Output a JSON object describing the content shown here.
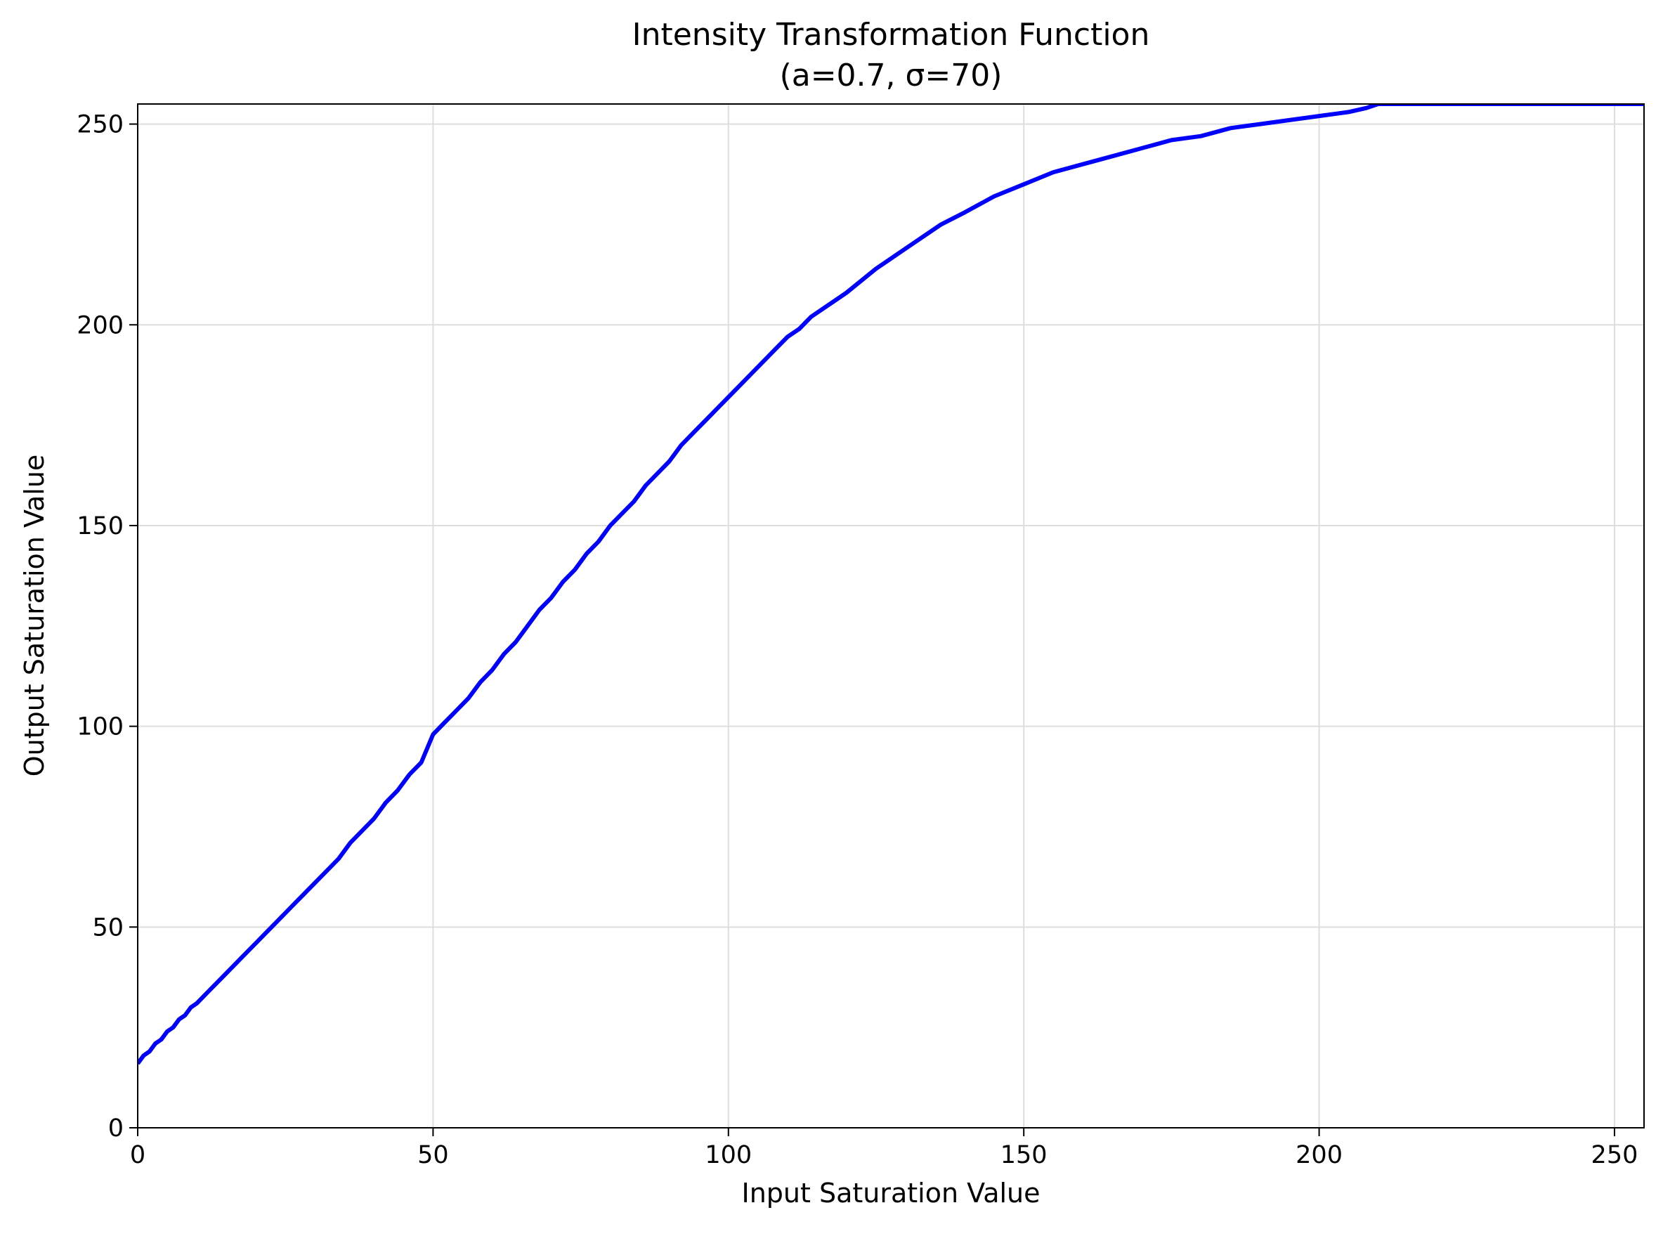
{
  "chart_data": {
    "type": "line",
    "title": "Intensity Transformation Function",
    "subtitle": "(a=0.7, σ=70)",
    "xlabel": "Input Saturation Value",
    "ylabel": "Output Saturation Value",
    "xlim": [
      0,
      255
    ],
    "ylim": [
      0,
      255
    ],
    "xticks": [
      0,
      50,
      100,
      150,
      200,
      250
    ],
    "yticks": [
      0,
      50,
      100,
      150,
      200,
      250
    ],
    "grid": true,
    "legend": "none",
    "series": [
      {
        "color": "#0000ff",
        "x": [
          0,
          1,
          2,
          3,
          4,
          5,
          6,
          7,
          8,
          9,
          10,
          12,
          14,
          16,
          18,
          20,
          22,
          24,
          26,
          28,
          30,
          32,
          34,
          36,
          38,
          40,
          42,
          44,
          46,
          48,
          50,
          52,
          54,
          56,
          58,
          60,
          62,
          64,
          66,
          68,
          70,
          72,
          74,
          76,
          78,
          80,
          82,
          84,
          86,
          88,
          90,
          92,
          94,
          96,
          98,
          100,
          102,
          104,
          106,
          108,
          110,
          112,
          114,
          116,
          118,
          120,
          125,
          130,
          136,
          140,
          145,
          150,
          155,
          160,
          165,
          170,
          175,
          180,
          185,
          190,
          195,
          200,
          205,
          208,
          210,
          215,
          220,
          230,
          240,
          255
        ],
        "y": [
          16,
          18,
          19,
          21,
          22,
          24,
          25,
          27,
          28,
          30,
          31,
          34,
          37,
          40,
          43,
          46,
          49,
          52,
          55,
          58,
          61,
          64,
          67,
          71,
          74,
          77,
          81,
          84,
          88,
          91,
          98,
          101,
          104,
          107,
          111,
          114,
          118,
          121,
          125,
          129,
          132,
          136,
          139,
          143,
          146,
          150,
          153,
          156,
          160,
          163,
          166,
          170,
          173,
          176,
          179,
          182,
          185,
          188,
          191,
          194,
          197,
          199,
          202,
          204,
          206,
          208,
          214,
          219,
          225,
          228,
          232,
          235,
          238,
          240,
          242,
          244,
          246,
          247,
          249,
          250,
          251,
          252,
          253,
          254,
          255,
          255,
          255,
          255,
          255,
          255
        ]
      }
    ]
  }
}
